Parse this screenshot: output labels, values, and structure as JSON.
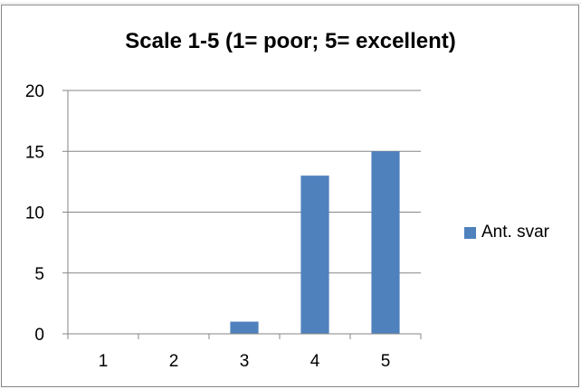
{
  "chart_data": {
    "type": "bar",
    "title": "Scale 1-5 (1= poor; 5= excellent)",
    "xlabel": "",
    "ylabel": "",
    "categories": [
      "1",
      "2",
      "3",
      "4",
      "5"
    ],
    "series": [
      {
        "name": "Ant. svar",
        "values": [
          0,
          0,
          1,
          13,
          15
        ],
        "color": "#4f81bd"
      }
    ],
    "ylim": [
      0,
      20
    ],
    "yticks": [
      0,
      5,
      10,
      15,
      20
    ],
    "grid": true,
    "legend_position": "right"
  }
}
